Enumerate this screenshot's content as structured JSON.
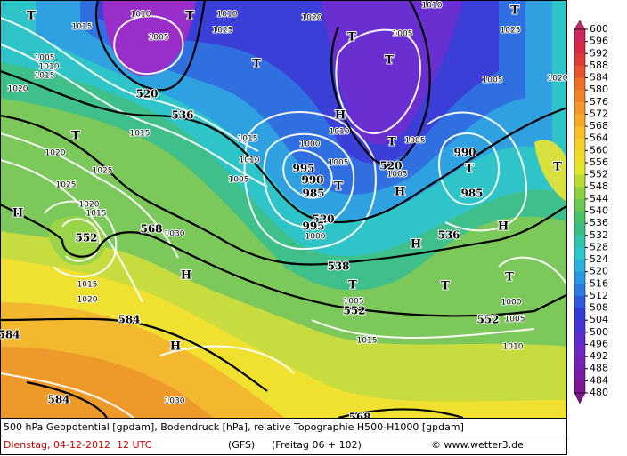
{
  "legend_labels": [
    "600",
    "596",
    "592",
    "588",
    "584",
    "580",
    "576",
    "572",
    "568",
    "564",
    "560",
    "556",
    "552",
    "548",
    "544",
    "540",
    "536",
    "532",
    "528",
    "524",
    "520",
    "516",
    "512",
    "508",
    "504",
    "500",
    "496",
    "492",
    "488",
    "484",
    "480"
  ],
  "map_labels": [
    "T",
    "1010",
    "T",
    "1010",
    "1015",
    "1005",
    "1025",
    "1005",
    "1010",
    "1015",
    "520",
    "T",
    "1020",
    "1010",
    "T",
    "1005",
    "T",
    "T",
    "1025",
    "1020",
    "1005",
    "1020",
    "536",
    "1015",
    "H",
    "1010",
    "T",
    "1020",
    "1015",
    "1000",
    "T",
    "1005",
    "990",
    "T",
    "1025",
    "1010",
    "1005",
    "995",
    "990",
    "1005",
    "520",
    "1005",
    "1025",
    "T",
    "985",
    "H",
    "985",
    "1020",
    "1015",
    "H",
    "520",
    "995",
    "1000",
    "552",
    "568",
    "1030",
    "H",
    "536",
    "H",
    "T",
    "1015",
    "1020",
    "H",
    "538",
    "T",
    "T",
    "1005",
    "552",
    "T",
    "1000",
    "552",
    "1005",
    "584",
    "584",
    "H",
    "1015",
    "1010",
    "584",
    "1030",
    "568"
  ],
  "footer": {
    "title": "500 hPa Geopotential [gpdam], Bodendruck [hPa], relative Topographie H500-H1000 [gpdam]",
    "date": "Dienstag, 04-12-2012  12 UTC",
    "model": "(GFS)",
    "run": "(Freitag 06 + 102)",
    "credit": "© www.wetter3.de"
  }
}
